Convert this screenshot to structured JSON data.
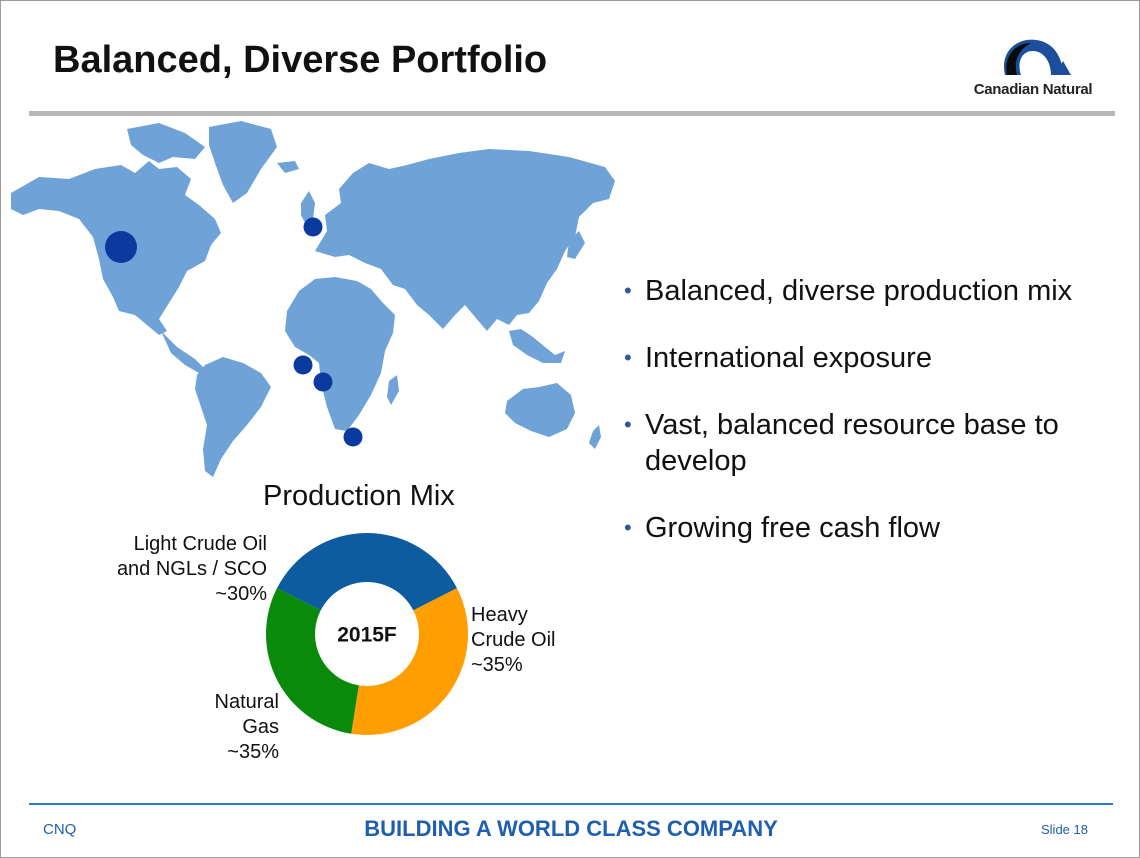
{
  "slide": {
    "title": "Balanced, Diverse Portfolio",
    "logo_text": "Canadian Natural",
    "bullets": [
      "Balanced, diverse production mix",
      "International exposure",
      "Vast, balanced resource base to develop",
      "Growing free cash flow"
    ],
    "footer": {
      "left": "CNQ",
      "center": "BUILDING A WORLD CLASS COMPANY",
      "right": "Slide 18"
    }
  },
  "map": {
    "land_color": "#6fa3d8",
    "marker_color": "#0a3a9e",
    "markers": [
      "North America",
      "North Sea",
      "Offshore Africa (Côte d'Ivoire)",
      "Offshore Africa (Gabon)",
      "Offshore Africa (South Africa)"
    ]
  },
  "chart_data": {
    "type": "pie",
    "donut": true,
    "title": "Production Mix",
    "center_label": "2015F",
    "slices": [
      {
        "label_lines": [
          "Heavy",
          "Crude Oil",
          "~35%"
        ],
        "value": 35,
        "color": "#0d5ca0"
      },
      {
        "label_lines": [
          "Natural",
          "Gas",
          "~35%"
        ],
        "value": 35,
        "color": "#ff9e00"
      },
      {
        "label_lines": [
          "Light Crude Oil",
          "and NGLs / SCO",
          "~30%"
        ],
        "value": 30,
        "color": "#0a8a0a"
      }
    ]
  }
}
